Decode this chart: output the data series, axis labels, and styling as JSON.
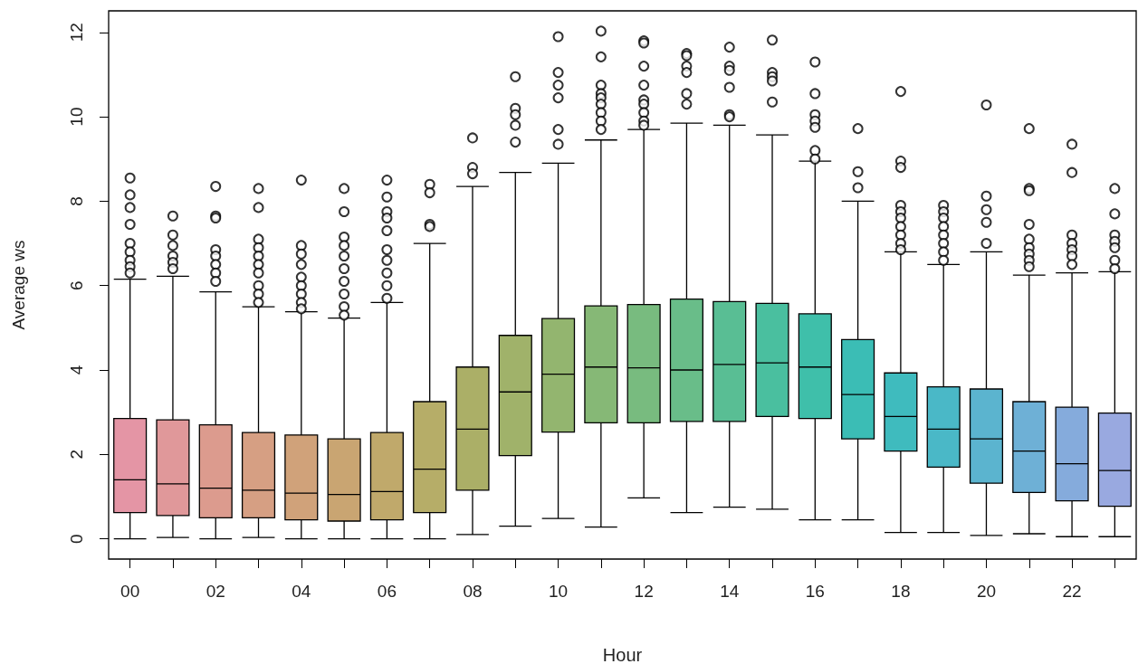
{
  "chart_data": {
    "type": "box",
    "xlabel": "Hour",
    "ylabel": "Average ws",
    "categories": [
      "00",
      null,
      "02",
      null,
      "04",
      null,
      "06",
      null,
      "08",
      null,
      "10",
      null,
      "12",
      null,
      "14",
      null,
      "16",
      null,
      "18",
      null,
      "20",
      null,
      "22",
      null
    ],
    "colors": [
      "#e495a5",
      "#e0989a",
      "#dc9b8e",
      "#d69f83",
      "#d0a27a",
      "#c9a572",
      "#c0a96b",
      "#b6ad68",
      "#abaf67",
      "#a0b26a",
      "#93b56f",
      "#86b876",
      "#78bb7f",
      "#69bd89",
      "#59be94",
      "#4abf9f",
      "#3fbfaa",
      "#3bbdb5",
      "#3fbbbe",
      "#4ab8c7",
      "#5bb4cf",
      "#6eb0d6",
      "#85abdc",
      "#99a9e0"
    ],
    "boxes": [
      {
        "low": 0,
        "q1": 0.62,
        "median": 1.4,
        "q3": 2.85,
        "high": 6.15,
        "outliers": [
          8.55,
          8.15,
          7.85,
          7.45,
          7.0,
          6.8,
          6.6,
          6.45,
          6.3
        ]
      },
      {
        "low": 0.03,
        "q1": 0.55,
        "median": 1.3,
        "q3": 2.82,
        "high": 6.22,
        "outliers": [
          7.65,
          7.2,
          6.95,
          6.7,
          6.55,
          6.4
        ]
      },
      {
        "low": 0,
        "q1": 0.5,
        "median": 1.2,
        "q3": 2.7,
        "high": 5.85,
        "outliers": [
          8.35,
          7.65,
          7.6,
          6.85,
          6.7,
          6.5,
          6.3,
          6.1
        ]
      },
      {
        "low": 0.03,
        "q1": 0.5,
        "median": 1.15,
        "q3": 2.52,
        "high": 5.5,
        "outliers": [
          8.3,
          7.85,
          7.1,
          6.9,
          6.7,
          6.5,
          6.3,
          6.0,
          5.8,
          5.6
        ]
      },
      {
        "low": 0,
        "q1": 0.45,
        "median": 1.08,
        "q3": 2.46,
        "high": 5.38,
        "outliers": [
          8.5,
          6.95,
          6.75,
          6.5,
          6.2,
          6.0,
          5.8,
          5.6,
          5.45
        ]
      },
      {
        "low": 0,
        "q1": 0.42,
        "median": 1.05,
        "q3": 2.37,
        "high": 5.23,
        "outliers": [
          8.3,
          7.75,
          7.15,
          6.95,
          6.7,
          6.4,
          6.1,
          5.8,
          5.5,
          5.3
        ]
      },
      {
        "low": 0,
        "q1": 0.45,
        "median": 1.12,
        "q3": 2.52,
        "high": 5.6,
        "outliers": [
          8.5,
          8.1,
          7.75,
          7.6,
          7.3,
          6.85,
          6.6,
          6.3,
          6.0,
          5.7
        ]
      },
      {
        "low": 0,
        "q1": 0.62,
        "median": 1.65,
        "q3": 3.25,
        "high": 7.0,
        "outliers": [
          8.4,
          8.2,
          7.45,
          7.4
        ]
      },
      {
        "low": 0.1,
        "q1": 1.15,
        "median": 2.6,
        "q3": 4.07,
        "high": 8.35,
        "outliers": [
          9.5,
          8.8,
          8.65
        ]
      },
      {
        "low": 0.3,
        "q1": 1.97,
        "median": 3.48,
        "q3": 4.82,
        "high": 8.68,
        "outliers": [
          10.95,
          10.2,
          10.05,
          9.8,
          9.4
        ]
      },
      {
        "low": 0.48,
        "q1": 2.53,
        "median": 3.9,
        "q3": 5.22,
        "high": 8.9,
        "outliers": [
          11.9,
          11.05,
          10.75,
          10.45,
          9.7,
          9.35
        ]
      },
      {
        "low": 0.28,
        "q1": 2.75,
        "median": 4.07,
        "q3": 5.52,
        "high": 9.45,
        "outliers": [
          12.03,
          11.42,
          10.75,
          10.55,
          10.45,
          10.3,
          10.1,
          9.9,
          9.7
        ]
      },
      {
        "low": 0.97,
        "q1": 2.75,
        "median": 4.05,
        "q3": 5.55,
        "high": 9.7,
        "outliers": [
          11.8,
          11.75,
          11.2,
          10.75,
          10.4,
          10.3,
          10.1,
          9.9,
          9.8
        ]
      },
      {
        "low": 0.62,
        "q1": 2.78,
        "median": 4.0,
        "q3": 5.68,
        "high": 9.85,
        "outliers": [
          11.5,
          11.45,
          11.2,
          11.05,
          10.55,
          10.3
        ]
      },
      {
        "low": 0.75,
        "q1": 2.78,
        "median": 4.13,
        "q3": 5.62,
        "high": 9.8,
        "outliers": [
          11.65,
          11.2,
          11.1,
          10.7,
          10.05,
          10.0
        ]
      },
      {
        "low": 0.7,
        "q1": 2.9,
        "median": 4.17,
        "q3": 5.58,
        "high": 9.57,
        "outliers": [
          11.82,
          11.05,
          10.95,
          10.85,
          10.35
        ]
      },
      {
        "low": 0.45,
        "q1": 2.85,
        "median": 4.07,
        "q3": 5.33,
        "high": 8.95,
        "outliers": [
          11.3,
          10.55,
          10.05,
          9.9,
          9.75,
          9.2,
          9.0
        ]
      },
      {
        "low": 0.45,
        "q1": 2.37,
        "median": 3.42,
        "q3": 4.72,
        "high": 8.0,
        "outliers": [
          9.72,
          8.7,
          8.32
        ]
      },
      {
        "low": 0.15,
        "q1": 2.08,
        "median": 2.9,
        "q3": 3.93,
        "high": 6.8,
        "outliers": [
          10.6,
          8.95,
          8.8,
          7.9,
          7.75,
          7.6,
          7.4,
          7.2,
          7.0,
          6.85
        ]
      },
      {
        "low": 0.15,
        "q1": 1.7,
        "median": 2.6,
        "q3": 3.6,
        "high": 6.5,
        "outliers": [
          7.9,
          7.75,
          7.6,
          7.4,
          7.2,
          7.0,
          6.8,
          6.6
        ]
      },
      {
        "low": 0.08,
        "q1": 1.32,
        "median": 2.37,
        "q3": 3.55,
        "high": 6.8,
        "outliers": [
          10.28,
          8.12,
          7.8,
          7.5,
          7.0
        ]
      },
      {
        "low": 0.12,
        "q1": 1.1,
        "median": 2.08,
        "q3": 3.25,
        "high": 6.25,
        "outliers": [
          9.72,
          8.3,
          8.25,
          7.45,
          7.1,
          6.9,
          6.75,
          6.6,
          6.45
        ]
      },
      {
        "low": 0.05,
        "q1": 0.9,
        "median": 1.78,
        "q3": 3.12,
        "high": 6.3,
        "outliers": [
          9.35,
          8.68,
          7.2,
          7.0,
          6.85,
          6.7,
          6.5
        ]
      },
      {
        "low": 0.05,
        "q1": 0.77,
        "median": 1.62,
        "q3": 2.98,
        "high": 6.33,
        "outliers": [
          8.3,
          7.7,
          7.2,
          7.05,
          6.9,
          6.6,
          6.4
        ]
      }
    ],
    "ylim": [
      -0.48,
      12.51
    ],
    "yticks": [
      0,
      2,
      4,
      6,
      8,
      10,
      12
    ],
    "marker": "circle",
    "grid": false,
    "legend": false
  }
}
